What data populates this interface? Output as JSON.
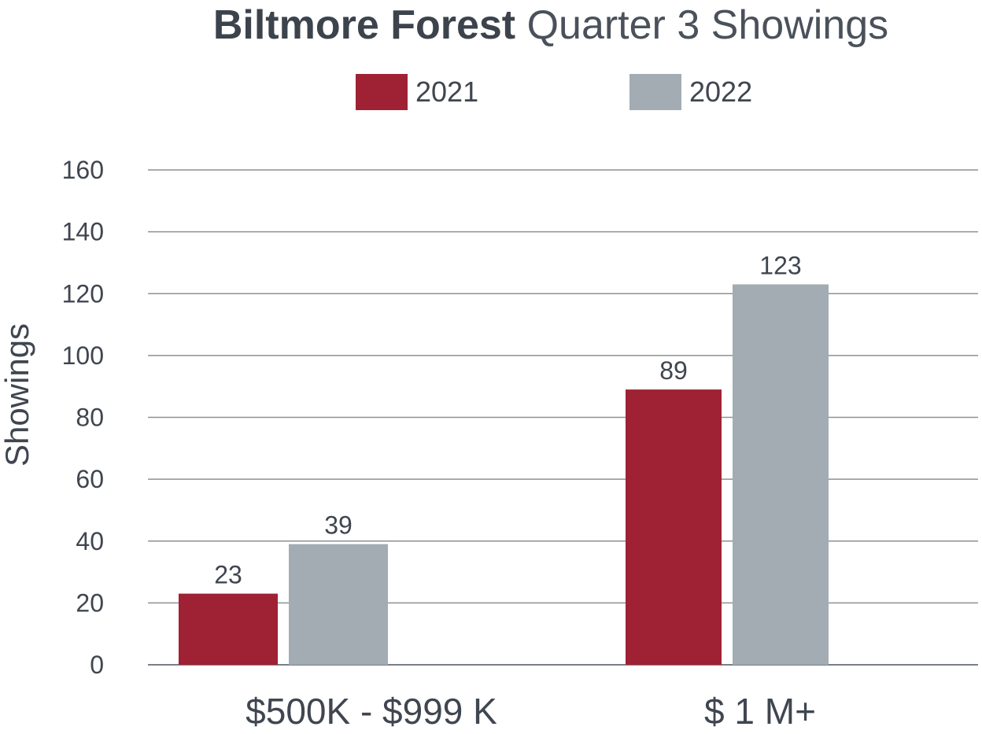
{
  "chart_data": {
    "type": "bar",
    "title_bold": "Biltmore Forest",
    "title_rest": "Quarter 3 Showings",
    "categories": [
      "$500K - $999 K",
      "$ 1 M+"
    ],
    "series": [
      {
        "name": "2021",
        "color": "#9e2233",
        "values": [
          23,
          89
        ]
      },
      {
        "name": "2022",
        "color": "#a2acb2",
        "values": [
          39,
          123
        ]
      }
    ],
    "xlabel": "",
    "ylabel": "Showings",
    "ylim": [
      0,
      160
    ],
    "yticks": [
      0,
      20,
      40,
      60,
      80,
      100,
      120,
      140,
      160
    ],
    "grid": true,
    "legend": "top-center"
  }
}
